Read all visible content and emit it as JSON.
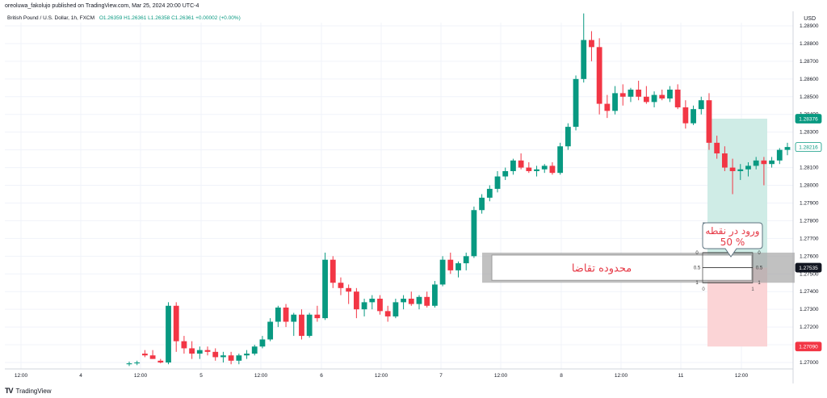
{
  "header": {
    "published_line": "oreoluwa_fakolujo published on TradingView.com, Mar 25, 2024 20:00 UTC-4",
    "symbol": "British Pound / U.S. Dollar, 1h, FXCM",
    "ohlc": "O1.26359 H1.26361 L1.26358 C1.26361 +0.00002 (+0.00%)",
    "currency": "USD"
  },
  "footer": {
    "brand": "TradingView"
  },
  "colors": {
    "up": "#089981",
    "down": "#f23645",
    "grid": "#f0f3fa",
    "profit_zone": "#cfece6",
    "loss_zone": "#fbd4d6"
  },
  "chart_data": {
    "type": "candlestick",
    "y_ticks": [
      "1.28900",
      "1.28800",
      "1.28700",
      "1.28600",
      "1.28500",
      "1.28400",
      "1.28300",
      "1.28200",
      "1.28100",
      "1.28000",
      "1.27900",
      "1.27800",
      "1.27700",
      "1.27600",
      "1.27500",
      "1.27400",
      "1.27300",
      "1.27200",
      "1.27100",
      "1.27000"
    ],
    "ylim": [
      1.2695,
      1.2906
    ],
    "x_ticks": [
      "12:00",
      "4",
      "12:00",
      "5",
      "12:00",
      "6",
      "12:00",
      "7",
      "12:00",
      "8",
      "12:00",
      "11",
      "12:00"
    ],
    "price_labels": [
      {
        "text": "1.28376",
        "value": 1.28376,
        "color": "#089981"
      },
      {
        "text": "1.28216",
        "value": 1.28216,
        "color": "#ffffff",
        "fg": "#089981"
      },
      {
        "text": "1.27535",
        "value": 1.27535,
        "color": "#131722"
      },
      {
        "text": "1.27090",
        "value": 1.2709,
        "color": "#f23645"
      }
    ],
    "demand_zone": {
      "label": "محدوده تقاضا",
      "top": 1.2762,
      "bottom": 1.2745
    },
    "fib_box": {
      "levels": [
        {
          "value": 1.2762,
          "left": "0",
          "right": "0"
        },
        {
          "value": 1.27535,
          "left": "0.5",
          "right": "0.5"
        },
        {
          "value": 1.2745,
          "left": "1",
          "right": "1"
        }
      ],
      "bottom_labels": [
        "0",
        "1"
      ]
    },
    "callout": {
      "line1": "ورود در نقطه",
      "line2": "50 %"
    },
    "position": {
      "entry": 1.27535,
      "target": 1.28376,
      "stop": 1.2709
    },
    "candles": [
      [
        1.2699,
        1.27005,
        1.2698,
        1.26995
      ],
      [
        1.26995,
        1.2701,
        1.26985,
        1.27
      ],
      [
        1.2705,
        1.2707,
        1.2703,
        1.2704
      ],
      [
        1.2704,
        1.2707,
        1.2702,
        1.2702
      ],
      [
        1.2701,
        1.2702,
        1.26995,
        1.27
      ],
      [
        1.27,
        1.2734,
        1.2699,
        1.2732
      ],
      [
        1.2732,
        1.2734,
        1.2706,
        1.2712
      ],
      [
        1.2712,
        1.2715,
        1.2705,
        1.2708
      ],
      [
        1.2708,
        1.2712,
        1.2702,
        1.2705
      ],
      [
        1.2705,
        1.2709,
        1.2702,
        1.2707
      ],
      [
        1.2707,
        1.2709,
        1.2704,
        1.2706
      ],
      [
        1.2706,
        1.2708,
        1.2701,
        1.2703
      ],
      [
        1.2703,
        1.2706,
        1.27,
        1.2704
      ],
      [
        1.2704,
        1.2706,
        1.2699,
        1.2701
      ],
      [
        1.2701,
        1.2705,
        1.2699,
        1.2704
      ],
      [
        1.2704,
        1.2707,
        1.2702,
        1.2705
      ],
      [
        1.2705,
        1.271,
        1.2704,
        1.2709
      ],
      [
        1.2709,
        1.2715,
        1.2708,
        1.2713
      ],
      [
        1.2713,
        1.2725,
        1.2712,
        1.2723
      ],
      [
        1.2723,
        1.2732,
        1.272,
        1.2731
      ],
      [
        1.2731,
        1.2733,
        1.272,
        1.2723
      ],
      [
        1.2723,
        1.2728,
        1.2715,
        1.2727
      ],
      [
        1.2727,
        1.273,
        1.2713,
        1.2715
      ],
      [
        1.2715,
        1.2728,
        1.2714,
        1.2727
      ],
      [
        1.2727,
        1.2732,
        1.2723,
        1.2725
      ],
      [
        1.2725,
        1.2762,
        1.2724,
        1.2758
      ],
      [
        1.2758,
        1.276,
        1.2742,
        1.2745
      ],
      [
        1.2745,
        1.2748,
        1.2738,
        1.2742
      ],
      [
        1.2742,
        1.2744,
        1.2733,
        1.274
      ],
      [
        1.274,
        1.2742,
        1.2725,
        1.273
      ],
      [
        1.273,
        1.2736,
        1.2726,
        1.2734
      ],
      [
        1.2734,
        1.2738,
        1.273,
        1.2736
      ],
      [
        1.2736,
        1.2738,
        1.2727,
        1.2729
      ],
      [
        1.2729,
        1.2732,
        1.2723,
        1.2726
      ],
      [
        1.2726,
        1.2736,
        1.2725,
        1.2734
      ],
      [
        1.2734,
        1.2738,
        1.273,
        1.2736
      ],
      [
        1.2736,
        1.274,
        1.2732,
        1.2733
      ],
      [
        1.2733,
        1.2738,
        1.273,
        1.2737
      ],
      [
        1.2737,
        1.274,
        1.2731,
        1.2732
      ],
      [
        1.2732,
        1.2746,
        1.2731,
        1.2744
      ],
      [
        1.2744,
        1.276,
        1.2743,
        1.2758
      ],
      [
        1.2758,
        1.2762,
        1.275,
        1.2752
      ],
      [
        1.2752,
        1.2757,
        1.2748,
        1.2756
      ],
      [
        1.2756,
        1.2762,
        1.2752,
        1.276
      ],
      [
        1.276,
        1.2788,
        1.2759,
        1.2786
      ],
      [
        1.2786,
        1.2795,
        1.2784,
        1.2793
      ],
      [
        1.2793,
        1.28,
        1.2791,
        1.2798
      ],
      [
        1.2798,
        1.2808,
        1.2796,
        1.2805
      ],
      [
        1.2805,
        1.281,
        1.2803,
        1.2808
      ],
      [
        1.2808,
        1.2815,
        1.2806,
        1.2814
      ],
      [
        1.2814,
        1.2818,
        1.2809,
        1.281
      ],
      [
        1.281,
        1.2813,
        1.2807,
        1.2808
      ],
      [
        1.2808,
        1.2811,
        1.2805,
        1.2809
      ],
      [
        1.2809,
        1.2812,
        1.2807,
        1.2811
      ],
      [
        1.2811,
        1.2813,
        1.2806,
        1.2807
      ],
      [
        1.2807,
        1.2824,
        1.2806,
        1.2822
      ],
      [
        1.2822,
        1.2835,
        1.282,
        1.2833
      ],
      [
        1.2833,
        1.2862,
        1.2831,
        1.286
      ],
      [
        1.286,
        1.2897,
        1.2858,
        1.2882
      ],
      [
        1.2882,
        1.2887,
        1.287,
        1.2878
      ],
      [
        1.2878,
        1.2883,
        1.284,
        1.2846
      ],
      [
        1.2846,
        1.2851,
        1.2838,
        1.2842
      ],
      [
        1.2842,
        1.2856,
        1.284,
        1.2852
      ],
      [
        1.2852,
        1.2857,
        1.2845,
        1.285
      ],
      [
        1.285,
        1.2855,
        1.2847,
        1.2854
      ],
      [
        1.2854,
        1.2859,
        1.2848,
        1.285
      ],
      [
        1.285,
        1.2856,
        1.2846,
        1.2847
      ],
      [
        1.2847,
        1.2853,
        1.2844,
        1.2851
      ],
      [
        1.2851,
        1.2854,
        1.2848,
        1.2849
      ],
      [
        1.2849,
        1.2856,
        1.2847,
        1.2854
      ],
      [
        1.2854,
        1.2857,
        1.2843,
        1.2844
      ],
      [
        1.2844,
        1.2848,
        1.2832,
        1.2835
      ],
      [
        1.2835,
        1.2845,
        1.2834,
        1.2843
      ],
      [
        1.2843,
        1.285,
        1.284,
        1.2848
      ],
      [
        1.2848,
        1.2852,
        1.282,
        1.2824
      ],
      [
        1.2824,
        1.2828,
        1.2815,
        1.2818
      ],
      [
        1.2818,
        1.2822,
        1.2808,
        1.281
      ],
      [
        1.281,
        1.2815,
        1.2795,
        1.2808
      ],
      [
        1.2808,
        1.2812,
        1.2803,
        1.2809
      ],
      [
        1.2809,
        1.2813,
        1.2805,
        1.2811
      ],
      [
        1.2811,
        1.2816,
        1.2809,
        1.2814
      ],
      [
        1.2814,
        1.2816,
        1.28,
        1.2812
      ],
      [
        1.2812,
        1.2816,
        1.281,
        1.2814
      ],
      [
        1.2814,
        1.2821,
        1.2812,
        1.282
      ],
      [
        1.282,
        1.2824,
        1.2817,
        1.28216
      ]
    ]
  }
}
